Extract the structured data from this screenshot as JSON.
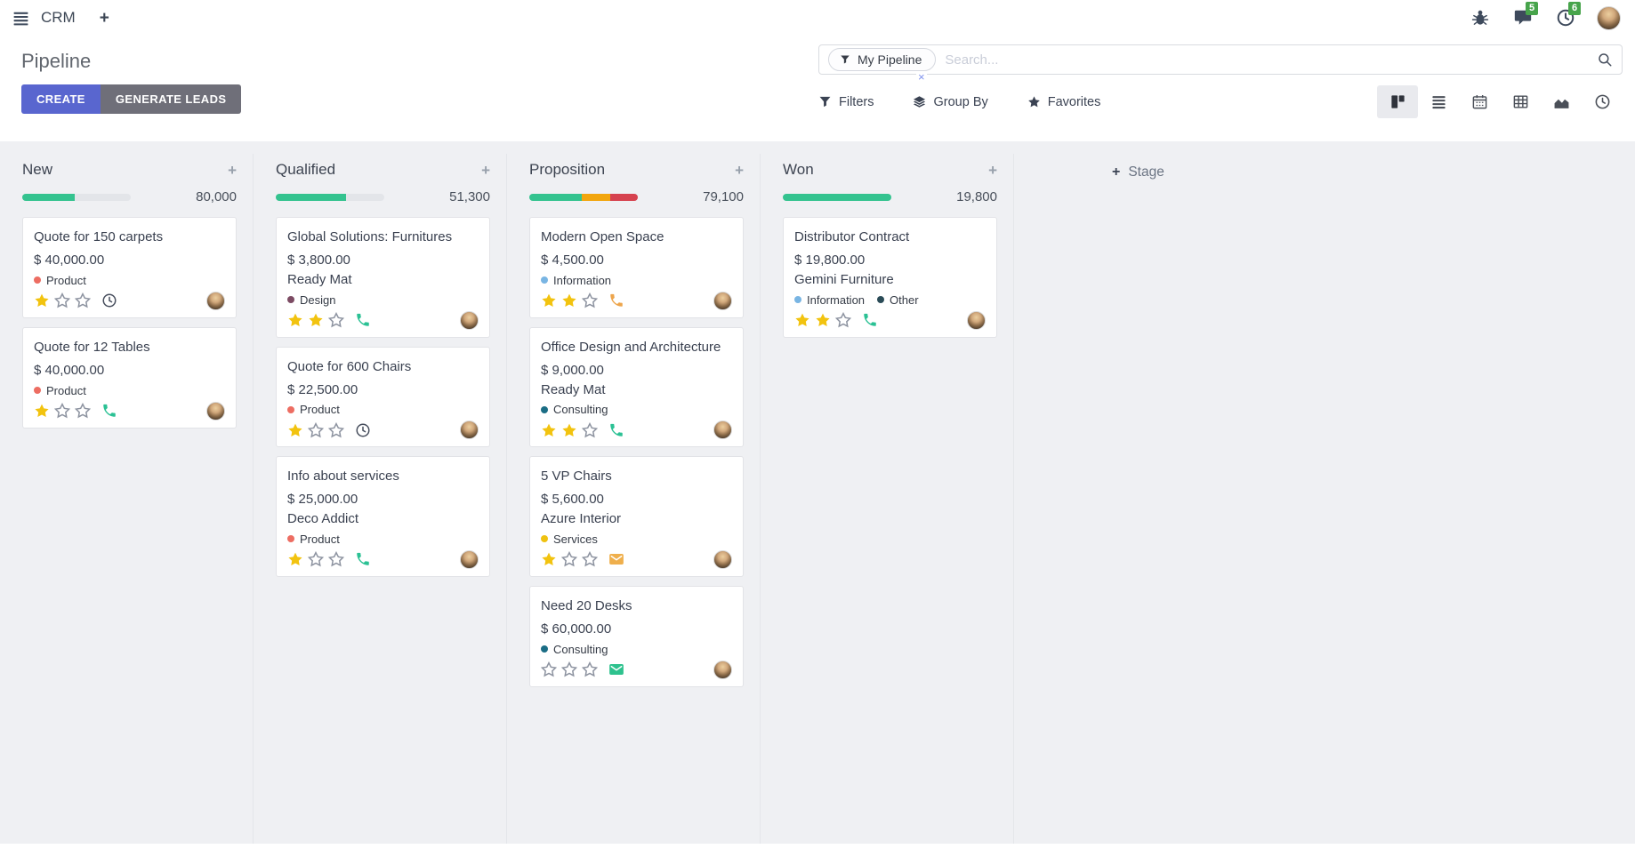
{
  "navbar": {
    "brand": "CRM",
    "plus": "+",
    "messages_badge": "5",
    "activities_badge": "6"
  },
  "header": {
    "title": "Pipeline",
    "create_label": "CREATE",
    "generate_leads_label": "GENERATE LEADS"
  },
  "search": {
    "facet_label": "My Pipeline",
    "remove_label": "×",
    "placeholder": "Search..."
  },
  "toolbar": {
    "filters": "Filters",
    "group_by": "Group By",
    "favorites": "Favorites"
  },
  "add_stage": {
    "plus": "+",
    "label": "Stage"
  },
  "ui": {
    "plus": "+"
  },
  "colors": {
    "primary": "#5966cf",
    "secondary": "#6f6f79",
    "progress_green": "#34c38f",
    "progress_orange": "#f2a60e",
    "progress_red": "#d6424f",
    "star_filled": "#f2c30f",
    "badge_green": "#47a44b",
    "kanban_bg": "#eff0f3"
  },
  "columns": [
    {
      "name": "New",
      "counter": "80,000",
      "progress": [
        {
          "color": "#34c38f",
          "pct": 48
        }
      ],
      "cards": [
        {
          "title": "Quote for 150 carpets",
          "amount": "$ 40,000.00",
          "tags": [
            {
              "label": "Product",
              "color": "#ed6d62"
            }
          ],
          "stars": 1,
          "activity": {
            "icon": "clock-icon",
            "color": "#474e5d"
          }
        },
        {
          "title": "Quote for 12 Tables",
          "amount": "$ 40,000.00",
          "tags": [
            {
              "label": "Product",
              "color": "#ed6d62"
            }
          ],
          "stars": 1,
          "activity": {
            "icon": "phone-icon",
            "color": "#2bc194"
          }
        }
      ]
    },
    {
      "name": "Qualified",
      "counter": "51,300",
      "progress": [
        {
          "color": "#34c38f",
          "pct": 65
        }
      ],
      "cards": [
        {
          "title": "Global Solutions: Furnitures",
          "amount": "$ 3,800.00",
          "partner": "Ready Mat",
          "tags": [
            {
              "label": "Design",
              "color": "#7c4b63"
            }
          ],
          "stars": 2,
          "activity": {
            "icon": "phone-icon",
            "color": "#2bc194"
          }
        },
        {
          "title": "Quote for 600 Chairs",
          "amount": "$ 22,500.00",
          "tags": [
            {
              "label": "Product",
              "color": "#ed6d62"
            }
          ],
          "stars": 1,
          "activity": {
            "icon": "clock-icon",
            "color": "#474e5d"
          }
        },
        {
          "title": "Info about services",
          "amount": "$ 25,000.00",
          "partner": "Deco Addict",
          "tags": [
            {
              "label": "Product",
              "color": "#ed6d62"
            }
          ],
          "stars": 1,
          "activity": {
            "icon": "phone-icon",
            "color": "#2bc194"
          }
        }
      ]
    },
    {
      "name": "Proposition",
      "counter": "79,100",
      "progress": [
        {
          "color": "#34c38f",
          "pct": 48
        },
        {
          "color": "#f2a60e",
          "pct": 27
        },
        {
          "color": "#d6424f",
          "pct": 25
        }
      ],
      "cards": [
        {
          "title": "Modern Open Space",
          "amount": "$ 4,500.00",
          "tags": [
            {
              "label": "Information",
              "color": "#79b5e3"
            }
          ],
          "stars": 2,
          "activity": {
            "icon": "phone-icon",
            "color": "#eda54c"
          }
        },
        {
          "title": "Office Design and Architecture",
          "amount": "$ 9,000.00",
          "partner": "Ready Mat",
          "tags": [
            {
              "label": "Consulting",
              "color": "#1b6d85"
            }
          ],
          "stars": 2,
          "activity": {
            "icon": "phone-icon",
            "color": "#2bc194"
          }
        },
        {
          "title": "5 VP Chairs",
          "amount": "$ 5,600.00",
          "partner": "Azure Interior",
          "tags": [
            {
              "label": "Services",
              "color": "#efc211"
            }
          ],
          "stars": 1,
          "activity": {
            "icon": "envelope-icon",
            "color": "#efaf4c"
          }
        },
        {
          "title": "Need 20 Desks",
          "amount": "$ 60,000.00",
          "tags": [
            {
              "label": "Consulting",
              "color": "#1b6d85"
            }
          ],
          "stars": 0,
          "activity": {
            "icon": "envelope-icon",
            "color": "#2ec28e"
          }
        }
      ]
    },
    {
      "name": "Won",
      "counter": "19,800",
      "progress": [
        {
          "color": "#34c38f",
          "pct": 100
        }
      ],
      "cards": [
        {
          "title": "Distributor Contract",
          "amount": "$ 19,800.00",
          "partner": "Gemini Furniture",
          "tags": [
            {
              "label": "Information",
              "color": "#79b5e3"
            },
            {
              "label": "Other",
              "color": "#2a4b57"
            }
          ],
          "stars": 2,
          "activity": {
            "icon": "phone-icon",
            "color": "#2bc194"
          }
        }
      ]
    }
  ]
}
